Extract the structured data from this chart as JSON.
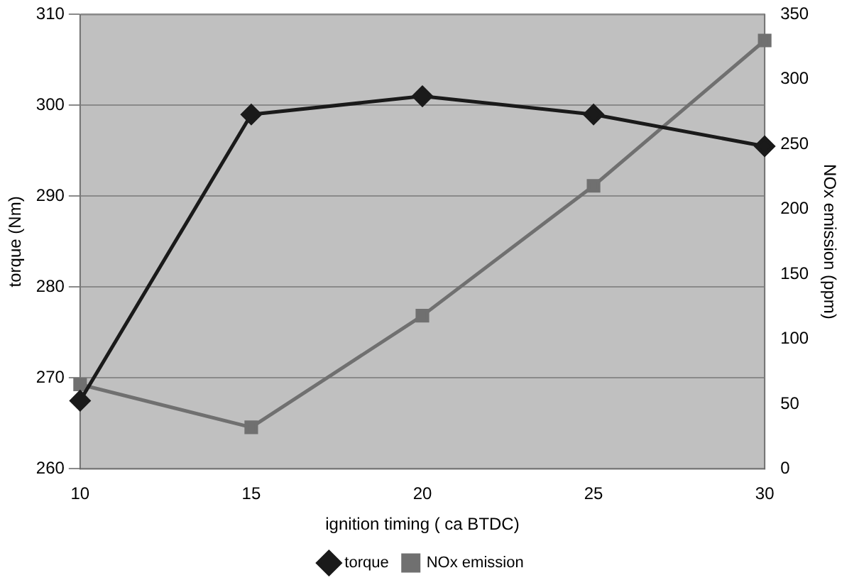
{
  "chart_data": {
    "type": "line",
    "xlabel": "ignition timing ( ca BTDC)",
    "ylabel": "torque (Nm)",
    "y2label": "NOx emission (ppm)",
    "categories": [
      "10",
      "15",
      "20",
      "25",
      "30"
    ],
    "series": [
      {
        "name": "torque",
        "color": "#1a1a1a",
        "values": [
          267.5,
          299,
          301,
          299,
          295.5
        ],
        "marker": "diamond"
      },
      {
        "name": "NOx emission",
        "color": "#707070",
        "values": [
          65,
          32,
          118,
          218,
          330
        ],
        "axis": "y2",
        "marker": "square"
      }
    ],
    "ylim": [
      260,
      310
    ],
    "yticks": [
      260,
      270,
      280,
      290,
      300,
      310
    ],
    "y2lim": [
      0,
      350
    ],
    "y2ticks": [
      0,
      50,
      100,
      150,
      200,
      250,
      300,
      350
    ],
    "grid": "y",
    "legend": "bottom"
  }
}
